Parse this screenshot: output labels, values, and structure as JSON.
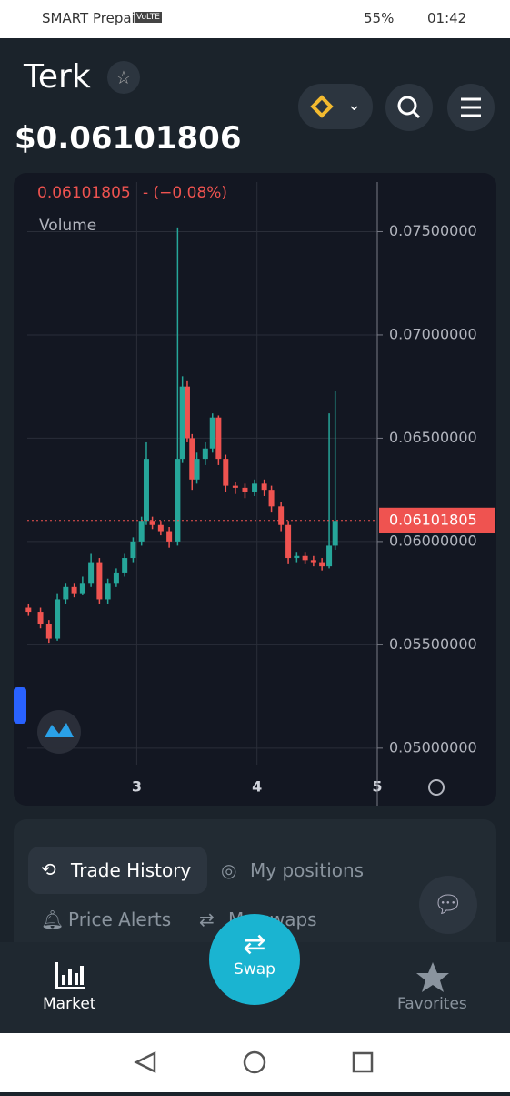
{
  "status_bar": {
    "carrier": "SMART Prepaid",
    "volte": "VoLTE",
    "battery": "55%",
    "time": "01:42"
  },
  "header": {
    "token": "Terk",
    "price": "$0.06101806"
  },
  "chart_data": {
    "type": "candlestick",
    "last_price": "0.06101805",
    "change": "- (−0.08%)",
    "volume_label": "Volume",
    "price_line": {
      "value": 0.06101805,
      "label": "0.06101805"
    },
    "xlim": [
      2.09,
      5.0
    ],
    "ylim": [
      0.0492,
      0.0774
    ],
    "xticks": [
      3,
      4,
      5
    ],
    "yticks": [
      {
        "value": 0.05,
        "label": "0.05000000"
      },
      {
        "value": 0.055,
        "label": "0.05500000"
      },
      {
        "value": 0.06,
        "label": "0.06000000"
      },
      {
        "value": 0.065,
        "label": "0.06500000"
      },
      {
        "value": 0.07,
        "label": "0.07000000"
      },
      {
        "value": 0.075,
        "label": "0.07500000"
      }
    ],
    "up_color": "#26a69a",
    "down_color": "#ef5350",
    "candles": [
      {
        "x": 2.1,
        "open": 0.0568,
        "high": 0.057,
        "low": 0.0564,
        "close": 0.0566
      },
      {
        "x": 2.2,
        "open": 0.0566,
        "high": 0.0568,
        "low": 0.0558,
        "close": 0.056
      },
      {
        "x": 2.27,
        "open": 0.056,
        "high": 0.0562,
        "low": 0.0551,
        "close": 0.0553
      },
      {
        "x": 2.34,
        "open": 0.0553,
        "high": 0.0575,
        "low": 0.0552,
        "close": 0.0572
      },
      {
        "x": 2.41,
        "open": 0.0572,
        "high": 0.058,
        "low": 0.057,
        "close": 0.0578
      },
      {
        "x": 2.48,
        "open": 0.0578,
        "high": 0.058,
        "low": 0.0573,
        "close": 0.0575
      },
      {
        "x": 2.55,
        "open": 0.0575,
        "high": 0.0583,
        "low": 0.0574,
        "close": 0.058
      },
      {
        "x": 2.62,
        "open": 0.058,
        "high": 0.0594,
        "low": 0.0578,
        "close": 0.059
      },
      {
        "x": 2.69,
        "open": 0.059,
        "high": 0.0592,
        "low": 0.057,
        "close": 0.0572
      },
      {
        "x": 2.76,
        "open": 0.0572,
        "high": 0.0582,
        "low": 0.057,
        "close": 0.058
      },
      {
        "x": 2.83,
        "open": 0.058,
        "high": 0.0587,
        "low": 0.0578,
        "close": 0.0585
      },
      {
        "x": 2.9,
        "open": 0.0585,
        "high": 0.0594,
        "low": 0.0583,
        "close": 0.0592
      },
      {
        "x": 2.97,
        "open": 0.0592,
        "high": 0.0602,
        "low": 0.059,
        "close": 0.06
      },
      {
        "x": 3.04,
        "open": 0.06,
        "high": 0.0612,
        "low": 0.0598,
        "close": 0.061
      },
      {
        "x": 3.08,
        "open": 0.061,
        "high": 0.0648,
        "low": 0.0608,
        "close": 0.064
      },
      {
        "x": 3.13,
        "open": 0.061,
        "high": 0.0612,
        "low": 0.0606,
        "close": 0.0608
      },
      {
        "x": 3.2,
        "open": 0.0608,
        "high": 0.061,
        "low": 0.0603,
        "close": 0.0605
      },
      {
        "x": 3.27,
        "open": 0.0605,
        "high": 0.0607,
        "low": 0.0597,
        "close": 0.06
      },
      {
        "x": 3.34,
        "open": 0.06,
        "high": 0.0752,
        "low": 0.0598,
        "close": 0.064
      },
      {
        "x": 3.38,
        "open": 0.064,
        "high": 0.068,
        "low": 0.0638,
        "close": 0.0675
      },
      {
        "x": 3.42,
        "open": 0.0675,
        "high": 0.0678,
        "low": 0.0648,
        "close": 0.065
      },
      {
        "x": 3.46,
        "open": 0.065,
        "high": 0.0652,
        "low": 0.0625,
        "close": 0.063
      },
      {
        "x": 3.5,
        "open": 0.063,
        "high": 0.0643,
        "low": 0.0628,
        "close": 0.064
      },
      {
        "x": 3.57,
        "open": 0.064,
        "high": 0.0648,
        "low": 0.0637,
        "close": 0.0645
      },
      {
        "x": 3.63,
        "open": 0.0645,
        "high": 0.0662,
        "low": 0.0643,
        "close": 0.066
      },
      {
        "x": 3.68,
        "open": 0.066,
        "high": 0.0661,
        "low": 0.0637,
        "close": 0.064
      },
      {
        "x": 3.74,
        "open": 0.064,
        "high": 0.0642,
        "low": 0.0624,
        "close": 0.0627
      },
      {
        "x": 3.82,
        "open": 0.0627,
        "high": 0.0629,
        "low": 0.0623,
        "close": 0.0626
      },
      {
        "x": 3.9,
        "open": 0.0626,
        "high": 0.0628,
        "low": 0.0621,
        "close": 0.0624
      },
      {
        "x": 3.98,
        "open": 0.0624,
        "high": 0.063,
        "low": 0.0622,
        "close": 0.0628
      },
      {
        "x": 4.06,
        "open": 0.0628,
        "high": 0.063,
        "low": 0.0622,
        "close": 0.0625
      },
      {
        "x": 4.12,
        "open": 0.0625,
        "high": 0.0627,
        "low": 0.0614,
        "close": 0.0617
      },
      {
        "x": 4.2,
        "open": 0.0617,
        "high": 0.0619,
        "low": 0.0605,
        "close": 0.0608
      },
      {
        "x": 4.26,
        "open": 0.0608,
        "high": 0.061,
        "low": 0.0589,
        "close": 0.0592
      },
      {
        "x": 4.33,
        "open": 0.0592,
        "high": 0.0595,
        "low": 0.059,
        "close": 0.0593
      },
      {
        "x": 4.4,
        "open": 0.0593,
        "high": 0.0595,
        "low": 0.0589,
        "close": 0.0591
      },
      {
        "x": 4.47,
        "open": 0.0591,
        "high": 0.0593,
        "low": 0.0588,
        "close": 0.059
      },
      {
        "x": 4.54,
        "open": 0.059,
        "high": 0.0592,
        "low": 0.0586,
        "close": 0.0588
      },
      {
        "x": 4.6,
        "open": 0.0588,
        "high": 0.0662,
        "low": 0.0587,
        "close": 0.0598
      },
      {
        "x": 4.65,
        "open": 0.0598,
        "high": 0.0673,
        "low": 0.0596,
        "close": 0.061
      }
    ]
  },
  "tabs": {
    "trade_history": "Trade History",
    "my_positions": "My positions",
    "price_alerts": "Price Alerts",
    "my_swaps": "My swaps"
  },
  "nav": {
    "market": "Market",
    "swap": "Swap",
    "favorites": "Favorites"
  }
}
